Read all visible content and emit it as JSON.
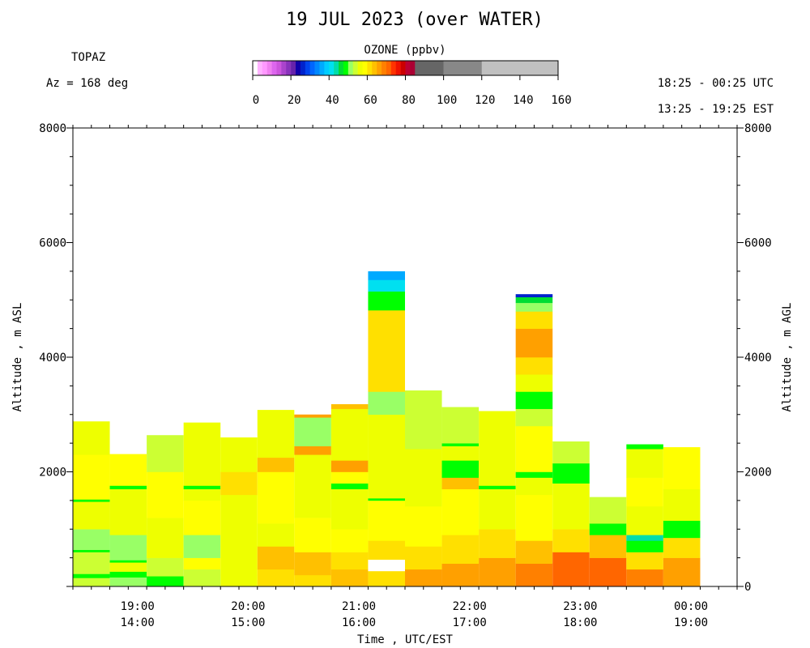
{
  "chart_data": {
    "type": "heatmap",
    "title": "19 JUL 2023 (over WATER)",
    "site": "TOPAZ",
    "azimuth": "Az = 168 deg",
    "time_range_utc": "18:25 - 00:25 UTC",
    "time_range_est": "13:25 - 19:25 EST",
    "colorbar": {
      "label": "OZONE (ppbv)",
      "ticks": [
        "0",
        "20",
        "40",
        "60",
        "80",
        "100",
        "120",
        "140",
        "160"
      ],
      "range": [
        0,
        160
      ],
      "segments": [
        {
          "from": 0,
          "to": 2.5,
          "color": "#ffffff"
        },
        {
          "from": 2.5,
          "to": 5,
          "color": "#ffb3ff"
        },
        {
          "from": 5,
          "to": 7.5,
          "color": "#ff99ff"
        },
        {
          "from": 7.5,
          "to": 10,
          "color": "#f080f0"
        },
        {
          "from": 10,
          "to": 12.5,
          "color": "#dd66ee"
        },
        {
          "from": 12.5,
          "to": 15,
          "color": "#cc55dd"
        },
        {
          "from": 15,
          "to": 17.5,
          "color": "#aa44cc"
        },
        {
          "from": 17.5,
          "to": 20,
          "color": "#8833bb"
        },
        {
          "from": 20,
          "to": 22.5,
          "color": "#6622aa"
        },
        {
          "from": 22.5,
          "to": 25,
          "color": "#1100aa"
        },
        {
          "from": 25,
          "to": 27.5,
          "color": "#0022cc"
        },
        {
          "from": 27.5,
          "to": 30,
          "color": "#0044ee"
        },
        {
          "from": 30,
          "to": 32.5,
          "color": "#0066ff"
        },
        {
          "from": 32.5,
          "to": 35,
          "color": "#0088ff"
        },
        {
          "from": 35,
          "to": 37.5,
          "color": "#00aaff"
        },
        {
          "from": 37.5,
          "to": 40,
          "color": "#00ccff"
        },
        {
          "from": 40,
          "to": 42.5,
          "color": "#00e0f0"
        },
        {
          "from": 42.5,
          "to": 45,
          "color": "#00ddaa"
        },
        {
          "from": 45,
          "to": 47.5,
          "color": "#00dd33"
        },
        {
          "from": 47.5,
          "to": 50,
          "color": "#00ff00"
        },
        {
          "from": 50,
          "to": 52.5,
          "color": "#99ff66"
        },
        {
          "from": 52.5,
          "to": 55,
          "color": "#ccff33"
        },
        {
          "from": 55,
          "to": 57.5,
          "color": "#eeff00"
        },
        {
          "from": 57.5,
          "to": 60,
          "color": "#ffff00"
        },
        {
          "from": 60,
          "to": 62.5,
          "color": "#ffe000"
        },
        {
          "from": 62.5,
          "to": 65,
          "color": "#ffc000"
        },
        {
          "from": 65,
          "to": 67.5,
          "color": "#ffa000"
        },
        {
          "from": 67.5,
          "to": 70,
          "color": "#ff8000"
        },
        {
          "from": 70,
          "to": 72.5,
          "color": "#ff6600"
        },
        {
          "from": 72.5,
          "to": 75,
          "color": "#ff3300"
        },
        {
          "from": 75,
          "to": 77.5,
          "color": "#ee1100"
        },
        {
          "from": 77.5,
          "to": 80,
          "color": "#cc0000"
        },
        {
          "from": 80,
          "to": 82.5,
          "color": "#bb0033"
        },
        {
          "from": 82.5,
          "to": 85,
          "color": "#aa0033"
        },
        {
          "from": 85,
          "to": 100,
          "color": "#666666"
        },
        {
          "from": 100,
          "to": 120,
          "color": "#888888"
        },
        {
          "from": 120,
          "to": 160,
          "color": "#c0c0c0"
        }
      ]
    },
    "x_axis": {
      "title": "Time , UTC/EST",
      "range_hours_utc": [
        "18:25",
        "00:25"
      ],
      "ticks": [
        {
          "utc": "19:00",
          "est": "14:00"
        },
        {
          "utc": "20:00",
          "est": "15:00"
        },
        {
          "utc": "21:00",
          "est": "16:00"
        },
        {
          "utc": "22:00",
          "est": "17:00"
        },
        {
          "utc": "23:00",
          "est": "18:00"
        },
        {
          "utc": "00:00",
          "est": "19:00"
        }
      ]
    },
    "y_axis_left": {
      "title": "Altitude , m ASL",
      "range": [
        0,
        8000
      ],
      "ticks": [
        "2000",
        "4000",
        "6000",
        "8000"
      ]
    },
    "y_axis_right": {
      "title": "Altitude , m AGL",
      "range": [
        0,
        8000
      ],
      "ticks": [
        "0",
        "2000",
        "4000",
        "6000",
        "8000"
      ]
    },
    "profiles": [
      {
        "start": "18:25",
        "end": "18:45",
        "top": 2880,
        "low_cells": [
          [
            0,
            150,
            53
          ],
          [
            150,
            220,
            48
          ],
          [
            220,
            600,
            54
          ],
          [
            600,
            640,
            48
          ],
          [
            640,
            1000,
            52
          ],
          [
            1000,
            1480,
            56
          ],
          [
            1480,
            1520,
            48
          ],
          [
            1520,
            2300,
            58
          ],
          [
            2300,
            2880,
            56
          ]
        ]
      },
      {
        "start": "18:45",
        "end": "19:05",
        "top": 2310,
        "low_cells": [
          [
            0,
            160,
            51
          ],
          [
            160,
            260,
            48
          ],
          [
            260,
            420,
            55
          ],
          [
            420,
            460,
            48
          ],
          [
            460,
            900,
            52
          ],
          [
            900,
            1700,
            56
          ],
          [
            1700,
            1760,
            48
          ],
          [
            1760,
            2310,
            58
          ]
        ]
      },
      {
        "start": "19:05",
        "end": "19:25",
        "top": 2640,
        "low_cells": [
          [
            0,
            80,
            48
          ],
          [
            80,
            180,
            49
          ],
          [
            180,
            500,
            53
          ],
          [
            500,
            1200,
            56
          ],
          [
            1200,
            2000,
            58
          ],
          [
            2000,
            2640,
            54
          ]
        ]
      },
      {
        "start": "19:25",
        "end": "19:45",
        "top": 2860,
        "low_cells": [
          [
            0,
            300,
            54
          ],
          [
            300,
            500,
            58
          ],
          [
            500,
            900,
            52
          ],
          [
            900,
            1500,
            59
          ],
          [
            1500,
            1700,
            56
          ],
          [
            1700,
            1760,
            48
          ],
          [
            1760,
            2860,
            57
          ]
        ]
      },
      {
        "start": "19:45",
        "end": "20:05",
        "top": 2600,
        "low_cells": [
          [
            0,
            200,
            56
          ],
          [
            200,
            700,
            57
          ],
          [
            700,
            1600,
            55
          ],
          [
            1600,
            2000,
            61
          ],
          [
            2000,
            2600,
            57
          ]
        ]
      },
      {
        "start": "20:05",
        "end": "20:25",
        "top": 3080,
        "low_cells": [
          [
            0,
            300,
            60
          ],
          [
            300,
            700,
            63
          ],
          [
            700,
            1100,
            57
          ],
          [
            1100,
            2000,
            58
          ],
          [
            2000,
            2250,
            64
          ],
          [
            2250,
            3080,
            55
          ]
        ]
      },
      {
        "start": "20:25",
        "end": "20:45",
        "top": 3000,
        "low_cells": [
          [
            0,
            200,
            62
          ],
          [
            200,
            600,
            64
          ],
          [
            600,
            1200,
            59
          ],
          [
            1200,
            2300,
            57
          ],
          [
            2300,
            2450,
            65
          ],
          [
            2450,
            2950,
            52
          ],
          [
            2950,
            3000,
            66
          ]
        ]
      },
      {
        "start": "20:45",
        "end": "21:05",
        "top": 3180,
        "low_cells": [
          [
            0,
            300,
            64
          ],
          [
            300,
            600,
            61
          ],
          [
            600,
            1000,
            59
          ],
          [
            1000,
            1700,
            57
          ],
          [
            1700,
            1800,
            48
          ],
          [
            1800,
            2000,
            58
          ],
          [
            2000,
            2200,
            65
          ],
          [
            2200,
            3100,
            56
          ],
          [
            3100,
            3180,
            63
          ]
        ]
      },
      {
        "start": "21:05",
        "end": "21:25",
        "top": 5500,
        "gap": [
          270,
          470
        ],
        "low_cells": [
          [
            0,
            270,
            62
          ],
          [
            270,
            470,
            0
          ],
          [
            470,
            800,
            61
          ],
          [
            800,
            1500,
            58
          ],
          [
            1500,
            1540,
            48
          ],
          [
            1540,
            3000,
            56
          ],
          [
            3000,
            3400,
            52
          ],
          [
            3400,
            4000,
            61
          ],
          [
            4000,
            4700,
            60
          ],
          [
            4700,
            4820,
            62
          ],
          [
            4820,
            5050,
            48
          ],
          [
            5050,
            5150,
            49
          ],
          [
            5150,
            5350,
            40
          ],
          [
            5350,
            5500,
            37
          ]
        ]
      },
      {
        "start": "21:25",
        "end": "21:45",
        "top": 3420,
        "low_cells": [
          [
            0,
            300,
            65
          ],
          [
            300,
            700,
            62
          ],
          [
            700,
            1400,
            59
          ],
          [
            1400,
            2400,
            57
          ],
          [
            2400,
            3420,
            53
          ]
        ]
      },
      {
        "start": "21:45",
        "end": "22:05",
        "top": 3130,
        "low_cells": [
          [
            0,
            400,
            66
          ],
          [
            400,
            900,
            61
          ],
          [
            900,
            1700,
            58
          ],
          [
            1700,
            1900,
            63
          ],
          [
            1900,
            2200,
            49
          ],
          [
            2200,
            2450,
            56
          ],
          [
            2450,
            2500,
            48
          ],
          [
            2500,
            3130,
            54
          ]
        ]
      },
      {
        "start": "22:05",
        "end": "22:25",
        "top": 3060,
        "low_cells": [
          [
            0,
            500,
            67
          ],
          [
            500,
            1000,
            62
          ],
          [
            1000,
            1700,
            57
          ],
          [
            1700,
            1760,
            48
          ],
          [
            1760,
            3060,
            56
          ]
        ]
      },
      {
        "start": "22:25",
        "end": "22:45",
        "top": 5100,
        "low_cells": [
          [
            0,
            400,
            69
          ],
          [
            400,
            800,
            64
          ],
          [
            800,
            1600,
            58
          ],
          [
            1600,
            1900,
            56
          ],
          [
            1900,
            2000,
            48
          ],
          [
            2000,
            2800,
            59
          ],
          [
            2800,
            3100,
            54
          ],
          [
            3100,
            3400,
            48
          ],
          [
            3400,
            3700,
            57
          ],
          [
            3700,
            4000,
            61
          ],
          [
            4000,
            4500,
            66
          ],
          [
            4500,
            4800,
            62
          ],
          [
            4800,
            4950,
            51
          ],
          [
            4950,
            5050,
            46
          ],
          [
            5050,
            5100,
            27
          ]
        ]
      },
      {
        "start": "22:45",
        "end": "23:05",
        "top": 2530,
        "low_cells": [
          [
            0,
            600,
            70
          ],
          [
            600,
            1000,
            62
          ],
          [
            1000,
            1800,
            57
          ],
          [
            1800,
            2150,
            48
          ],
          [
            2150,
            2530,
            54
          ]
        ]
      },
      {
        "start": "23:05",
        "end": "23:25",
        "top": 1560,
        "low_cells": [
          [
            0,
            500,
            71
          ],
          [
            500,
            900,
            64
          ],
          [
            900,
            1100,
            49
          ],
          [
            1100,
            1560,
            54
          ]
        ]
      },
      {
        "start": "23:25",
        "end": "23:45",
        "top": 2480,
        "low_cells": [
          [
            0,
            300,
            68
          ],
          [
            300,
            600,
            62
          ],
          [
            600,
            800,
            48
          ],
          [
            800,
            900,
            44
          ],
          [
            900,
            1400,
            55
          ],
          [
            1400,
            1900,
            59
          ],
          [
            1900,
            2400,
            56
          ],
          [
            2400,
            2480,
            49
          ]
        ]
      },
      {
        "start": "23:45",
        "end": "00:05",
        "top": 2430,
        "low_cells": [
          [
            0,
            500,
            67
          ],
          [
            500,
            850,
            61
          ],
          [
            850,
            1150,
            48
          ],
          [
            1150,
            1700,
            55
          ],
          [
            1700,
            2430,
            59
          ]
        ]
      }
    ]
  }
}
